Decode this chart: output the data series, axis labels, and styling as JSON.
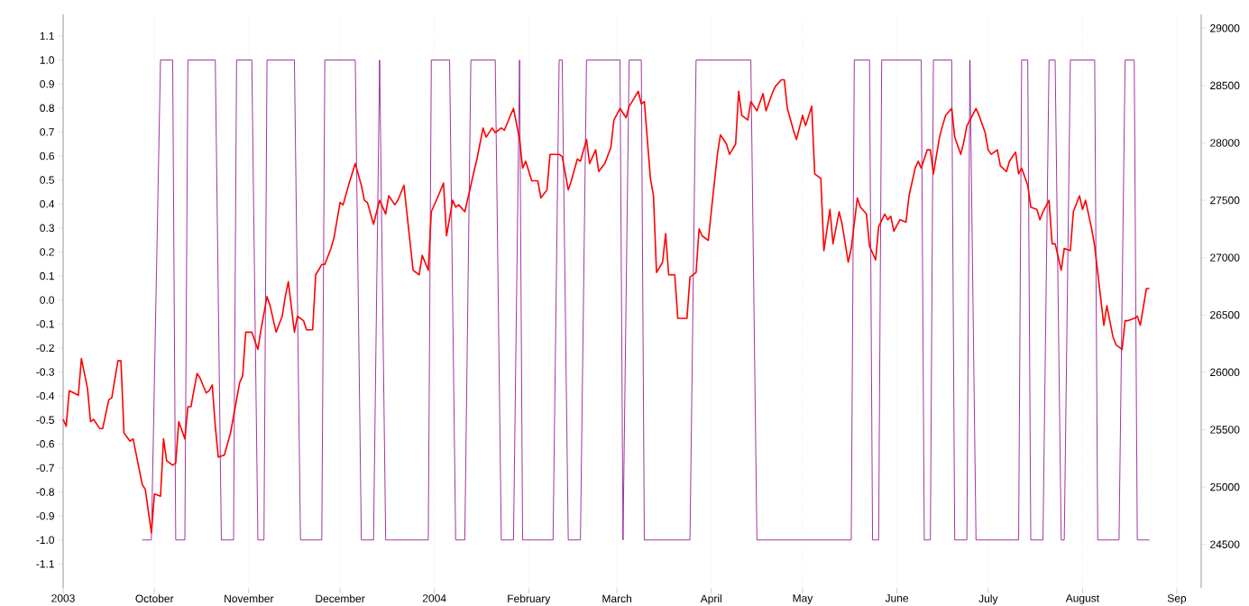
{
  "chart_data": {
    "type": "line",
    "xlim": [
      "2003-09-01",
      "2004-09-09"
    ],
    "xticks": [
      {
        "value": "2003-09-01",
        "label": "2003"
      },
      {
        "value": "2003-10-01",
        "label": "October"
      },
      {
        "value": "2003-11-01",
        "label": "November"
      },
      {
        "value": "2003-12-01",
        "label": "December"
      },
      {
        "value": "2004-01-01",
        "label": "2004"
      },
      {
        "value": "2004-02-01",
        "label": "February"
      },
      {
        "value": "2004-03-01",
        "label": "March"
      },
      {
        "value": "2004-04-01",
        "label": "April"
      },
      {
        "value": "2004-05-01",
        "label": "May"
      },
      {
        "value": "2004-06-01",
        "label": "June"
      },
      {
        "value": "2004-07-01",
        "label": "July"
      },
      {
        "value": "2004-08-01",
        "label": "August"
      },
      {
        "value": "2004-09-01",
        "label": "Sep"
      }
    ],
    "ylim": [
      -1.2,
      1.19
    ],
    "yticks": [
      -1.1,
      {
        "value": -1,
        "label": "-1.0"
      },
      -0.9,
      -0.8,
      -0.7,
      -0.6,
      -0.5,
      -0.4,
      -0.3,
      -0.2,
      -0.1,
      {
        "value": 0,
        "label": "0.0"
      },
      0.1,
      0.2,
      0.3,
      0.4,
      0.5,
      0.6,
      0.7,
      0.8,
      0.9,
      {
        "value": 1,
        "label": "1.0"
      },
      1.1
    ],
    "y2lim": [
      24120,
      29120
    ],
    "y2ticks": [
      24500,
      25000,
      25500,
      26000,
      26500,
      27000,
      27500,
      28000,
      28500,
      29000
    ],
    "grid": "x",
    "marker": "none",
    "line_style": "solid",
    "series": [
      {
        "color": "#8b008b",
        "axis": "y",
        "x": [
          "2003-09-27",
          "2003-09-30",
          "2003-10-03",
          "2003-10-07",
          "2003-10-08",
          "2003-10-11",
          "2003-10-12",
          "2003-10-21",
          "2003-10-23",
          "2003-10-27",
          "2003-10-28",
          "2003-11-02",
          "2003-11-04",
          "2003-11-06",
          "2003-11-07",
          "2003-11-16",
          "2003-11-18",
          "2003-11-25",
          "2003-11-26",
          "2003-12-06",
          "2003-12-08",
          "2003-12-12",
          "2003-12-14",
          "2003-12-16",
          "2003-12-30",
          "2003-12-31",
          "2004-01-06",
          "2004-01-08",
          "2004-01-11",
          "2004-01-13",
          "2004-01-21",
          "2004-01-23",
          "2004-01-27",
          "2004-01-29",
          "2004-01-30",
          "2004-02-09",
          "2004-02-11",
          "2004-02-12",
          "2004-02-14",
          "2004-02-18",
          "2004-02-20",
          "2004-03-02",
          "2004-03-03",
          "2004-03-05",
          "2004-03-09",
          "2004-03-10",
          "2004-03-25",
          "2004-03-27",
          "2004-04-14",
          "2004-04-16",
          "2004-05-17",
          "2004-05-18",
          "2004-05-23",
          "2004-05-24",
          "2004-05-26",
          "2004-05-27",
          "2004-06-09",
          "2004-06-10",
          "2004-06-12",
          "2004-06-13",
          "2004-06-19",
          "2004-06-20",
          "2004-06-24",
          "2004-06-25",
          "2004-06-27",
          "2004-07-11",
          "2004-07-12",
          "2004-07-14",
          "2004-07-15",
          "2004-07-19",
          "2004-07-21",
          "2004-07-23",
          "2004-07-25",
          "2004-07-26",
          "2004-07-28",
          "2004-08-05",
          "2004-08-06",
          "2004-08-13",
          "2004-08-15",
          "2004-08-18",
          "2004-08-19",
          "2004-08-23"
        ],
        "values": [
          -1,
          -1,
          1,
          1,
          -1,
          -1,
          1,
          1,
          -1,
          -1,
          1,
          1,
          -1,
          -1,
          1,
          1,
          -1,
          -1,
          1,
          1,
          -1,
          -1,
          1,
          -1,
          -1,
          1,
          1,
          -1,
          -1,
          1,
          1,
          -1,
          -1,
          1,
          -1,
          -1,
          1,
          1,
          -1,
          -1,
          1,
          1,
          -1,
          1,
          1,
          -1,
          -1,
          1,
          1,
          -1,
          -1,
          1,
          1,
          -1,
          -1,
          1,
          1,
          -1,
          -1,
          1,
          1,
          -1,
          -1,
          1,
          -1,
          -1,
          1,
          1,
          -1,
          -1,
          1,
          1,
          -1,
          -1,
          1,
          1,
          -1,
          -1,
          1,
          1,
          -1,
          -1
        ]
      },
      {
        "color": "#ff0000",
        "axis": "y2",
        "x": [
          "2003-09-01",
          "2003-09-02",
          "2003-09-03",
          "2003-09-06",
          "2003-09-07",
          "2003-09-09",
          "2003-09-10",
          "2003-09-11",
          "2003-09-13",
          "2003-09-14",
          "2003-09-16",
          "2003-09-17",
          "2003-09-19",
          "2003-09-20",
          "2003-09-21",
          "2003-09-23",
          "2003-09-24",
          "2003-09-27",
          "2003-09-28",
          "2003-09-30",
          "2003-10-01",
          "2003-10-03",
          "2003-10-04",
          "2003-10-05",
          "2003-10-07",
          "2003-10-08",
          "2003-10-09",
          "2003-10-11",
          "2003-10-12",
          "2003-10-13",
          "2003-10-15",
          "2003-10-16",
          "2003-10-18",
          "2003-10-19",
          "2003-10-20",
          "2003-10-21",
          "2003-10-22",
          "2003-10-24",
          "2003-10-26",
          "2003-10-29",
          "2003-10-30",
          "2003-10-31",
          "2003-11-02",
          "2003-11-04",
          "2003-11-05",
          "2003-11-07",
          "2003-11-08",
          "2003-11-10",
          "2003-11-12",
          "2003-11-13",
          "2003-11-14",
          "2003-11-16",
          "2003-11-17",
          "2003-11-19",
          "2003-11-20",
          "2003-11-22",
          "2003-11-23",
          "2003-11-25",
          "2003-11-26",
          "2003-11-28",
          "2003-11-29",
          "2003-12-01",
          "2003-12-02",
          "2003-12-04",
          "2003-12-06",
          "2003-12-08",
          "2003-12-09",
          "2003-12-10",
          "2003-12-12",
          "2003-12-14",
          "2003-12-16",
          "2003-12-17",
          "2003-12-19",
          "2003-12-20",
          "2003-12-22",
          "2003-12-23",
          "2003-12-25",
          "2003-12-27",
          "2003-12-28",
          "2003-12-30",
          "2003-12-31",
          "2004-01-02",
          "2004-01-04",
          "2004-01-05",
          "2004-01-07",
          "2004-01-08",
          "2004-01-09",
          "2004-01-11",
          "2004-01-13",
          "2004-01-14",
          "2004-01-15",
          "2004-01-17",
          "2004-01-18",
          "2004-01-20",
          "2004-01-21",
          "2004-01-23",
          "2004-01-24",
          "2004-01-26",
          "2004-01-27",
          "2004-01-29",
          "2004-01-30",
          "2004-01-31",
          "2004-02-02",
          "2004-02-04",
          "2004-02-05",
          "2004-02-07",
          "2004-02-08",
          "2004-02-10",
          "2004-02-11",
          "2004-02-12",
          "2004-02-14",
          "2004-02-15",
          "2004-02-17",
          "2004-02-18",
          "2004-02-20",
          "2004-02-21",
          "2004-02-23",
          "2004-02-24",
          "2004-02-26",
          "2004-02-28",
          "2004-02-29",
          "2004-03-02",
          "2004-03-04",
          "2004-03-05",
          "2004-03-06",
          "2004-03-08",
          "2004-03-09",
          "2004-03-10",
          "2004-03-12",
          "2004-03-13",
          "2004-03-14",
          "2004-03-16",
          "2004-03-17",
          "2004-03-18",
          "2004-03-20",
          "2004-03-21",
          "2004-03-23",
          "2004-03-24",
          "2004-03-25",
          "2004-03-27",
          "2004-03-28",
          "2004-03-29",
          "2004-03-31",
          "2004-04-01",
          "2004-04-03",
          "2004-04-04",
          "2004-04-06",
          "2004-04-07",
          "2004-04-09",
          "2004-04-10",
          "2004-04-11",
          "2004-04-13",
          "2004-04-14",
          "2004-04-16",
          "2004-04-18",
          "2004-04-19",
          "2004-04-21",
          "2004-04-22",
          "2004-04-24",
          "2004-04-25",
          "2004-04-26",
          "2004-04-28",
          "2004-04-29",
          "2004-05-01",
          "2004-05-02",
          "2004-05-04",
          "2004-05-05",
          "2004-05-07",
          "2004-05-08",
          "2004-05-10",
          "2004-05-11",
          "2004-05-13",
          "2004-05-14",
          "2004-05-16",
          "2004-05-17",
          "2004-05-19",
          "2004-05-20",
          "2004-05-22",
          "2004-05-23",
          "2004-05-25",
          "2004-05-26",
          "2004-05-28",
          "2004-05-29",
          "2004-05-30",
          "2004-05-31",
          "2004-06-02",
          "2004-06-04",
          "2004-06-05",
          "2004-06-07",
          "2004-06-08",
          "2004-06-09",
          "2004-06-11",
          "2004-06-12",
          "2004-06-13",
          "2004-06-15",
          "2004-06-16",
          "2004-06-17",
          "2004-06-19",
          "2004-06-20",
          "2004-06-22",
          "2004-06-23",
          "2004-06-24",
          "2004-06-25",
          "2004-06-27",
          "2004-06-28",
          "2004-06-30",
          "2004-07-01",
          "2004-07-02",
          "2004-07-04",
          "2004-07-05",
          "2004-07-07",
          "2004-07-08",
          "2004-07-10",
          "2004-07-11",
          "2004-07-12",
          "2004-07-14",
          "2004-07-15",
          "2004-07-17",
          "2004-07-18",
          "2004-07-19",
          "2004-07-21",
          "2004-07-22",
          "2004-07-23",
          "2004-07-25",
          "2004-07-26",
          "2004-07-28",
          "2004-07-29",
          "2004-07-31",
          "2004-08-01",
          "2004-08-02",
          "2004-08-04",
          "2004-08-05",
          "2004-08-07",
          "2004-08-08",
          "2004-08-09",
          "2004-08-11",
          "2004-08-12",
          "2004-08-14",
          "2004-08-15",
          "2004-08-16",
          "2004-08-18",
          "2004-08-19",
          "2004-08-20",
          "2004-08-22",
          "2004-08-23"
        ],
        "values": [
          25590,
          25530,
          25840,
          25800,
          26120,
          25860,
          25570,
          25590,
          25510,
          25510,
          25760,
          25780,
          26100,
          26100,
          25470,
          25400,
          25420,
          25020,
          24980,
          24600,
          24940,
          24920,
          25420,
          25230,
          25190,
          25210,
          25570,
          25420,
          25700,
          25700,
          25990,
          25950,
          25820,
          25840,
          25890,
          25530,
          25260,
          25280,
          25470,
          25910,
          25970,
          26350,
          26350,
          26200,
          26370,
          26660,
          26580,
          26350,
          26490,
          26660,
          26790,
          26350,
          26490,
          26450,
          26370,
          26370,
          26850,
          26940,
          26940,
          27080,
          27170,
          27480,
          27460,
          27650,
          27820,
          27630,
          27500,
          27480,
          27290,
          27500,
          27380,
          27540,
          27460,
          27500,
          27630,
          27380,
          26890,
          26850,
          27020,
          26890,
          27400,
          27520,
          27650,
          27190,
          27500,
          27440,
          27460,
          27400,
          27630,
          27750,
          27860,
          28130,
          28050,
          28130,
          28090,
          28130,
          28110,
          28240,
          28300,
          28030,
          27780,
          27840,
          27670,
          27670,
          27520,
          27590,
          27900,
          27900,
          27900,
          27880,
          27590,
          27670,
          27860,
          27840,
          28030,
          27820,
          27940,
          27750,
          27820,
          27960,
          28200,
          28300,
          28220,
          28320,
          28360,
          28450,
          28340,
          28360,
          27690,
          27540,
          26870,
          26960,
          27210,
          26850,
          26850,
          26470,
          26470,
          26470,
          26830,
          26870,
          27250,
          27190,
          27150,
          27400,
          27900,
          28070,
          27990,
          27900,
          27990,
          28450,
          28240,
          28200,
          28360,
          28280,
          28430,
          28280,
          28430,
          28490,
          28550,
          28550,
          28300,
          28110,
          28030,
          28240,
          28150,
          28320,
          27730,
          27690,
          27060,
          27420,
          27120,
          27400,
          27290,
          26960,
          27080,
          27520,
          27440,
          27380,
          27100,
          26980,
          27270,
          27380,
          27330,
          27360,
          27230,
          27330,
          27310,
          27540,
          27780,
          27840,
          27780,
          27940,
          27940,
          27730,
          28050,
          28150,
          28240,
          28300,
          28050,
          27900,
          28010,
          28150,
          28200,
          28300,
          28240,
          28090,
          27940,
          27900,
          27940,
          27800,
          27750,
          27840,
          27920,
          27730,
          27780,
          27630,
          27440,
          27420,
          27330,
          27400,
          27500,
          27120,
          27120,
          26890,
          27080,
          27060,
          27400,
          27540,
          27420,
          27500,
          27250,
          27100,
          26640,
          26410,
          26580,
          26310,
          26240,
          26200,
          26450,
          26450,
          26470,
          26490,
          26410,
          26730,
          26730
        ]
      }
    ]
  }
}
